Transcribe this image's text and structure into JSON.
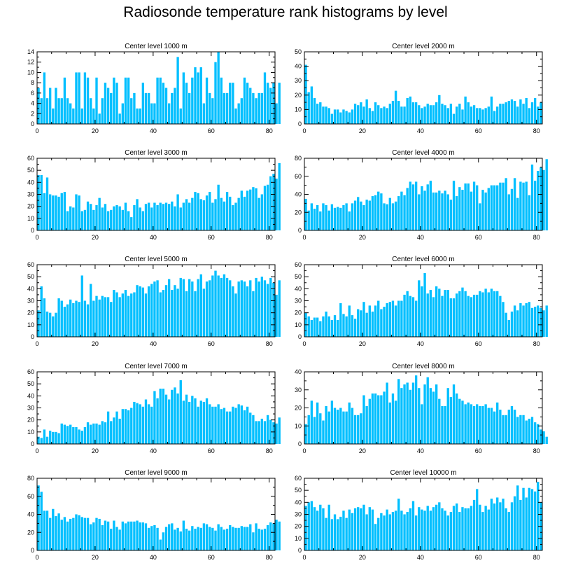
{
  "title": "Radiosonde temperature rank histograms by level",
  "colors": {
    "bar": "#00bfff",
    "axis": "#000000"
  },
  "chart_data": [
    {
      "type": "bar",
      "title": "Center level 1000 m",
      "xlim": [
        0,
        82
      ],
      "xticks": [
        0,
        20,
        40,
        60,
        80
      ],
      "ylim": [
        0,
        14
      ],
      "yticks": [
        0,
        2,
        4,
        6,
        8,
        10,
        12,
        14
      ],
      "values": [
        7,
        5,
        10,
        5,
        7,
        3,
        7,
        5,
        5,
        9,
        5,
        4,
        3,
        10,
        10,
        3,
        10,
        9,
        5,
        3,
        9,
        2,
        5,
        8,
        7,
        6,
        9,
        8,
        2,
        4,
        9,
        9,
        5,
        6,
        3,
        3,
        8,
        6,
        6,
        4,
        4,
        9,
        9,
        8,
        7,
        4,
        6,
        7,
        13,
        3,
        10,
        8,
        6,
        9,
        11,
        10,
        11,
        4,
        9,
        6,
        5,
        12,
        14,
        9,
        6,
        6,
        8,
        8,
        3,
        4,
        5,
        9,
        8,
        7,
        6,
        5,
        6,
        6,
        10,
        8,
        7,
        8,
        4,
        8
      ]
    },
    {
      "type": "bar",
      "title": "Center level 2000 m",
      "xlim": [
        0,
        82
      ],
      "xticks": [
        0,
        20,
        40,
        60,
        80
      ],
      "ylim": [
        0,
        50
      ],
      "yticks": [
        0,
        10,
        20,
        30,
        40,
        50
      ],
      "values": [
        41,
        22,
        26,
        18,
        14,
        15,
        12,
        12,
        11,
        7,
        10,
        10,
        8,
        10,
        9,
        8,
        10,
        14,
        13,
        15,
        12,
        17,
        11,
        9,
        15,
        13,
        11,
        12,
        11,
        14,
        16,
        23,
        16,
        12,
        12,
        18,
        19,
        15,
        15,
        13,
        11,
        12,
        14,
        13,
        13,
        15,
        20,
        14,
        13,
        11,
        14,
        7,
        12,
        14,
        10,
        19,
        15,
        12,
        13,
        11,
        11,
        10,
        11,
        12,
        19,
        9,
        12,
        14,
        14,
        15,
        16,
        17,
        16,
        12,
        17,
        14,
        18,
        11,
        15,
        18,
        12,
        15
      ]
    },
    {
      "type": "bar",
      "title": "Center level 3000 m",
      "xlim": [
        0,
        82
      ],
      "xticks": [
        0,
        20,
        40,
        60,
        80
      ],
      "ylim": [
        0,
        60
      ],
      "yticks": [
        0,
        10,
        20,
        30,
        40,
        50,
        60
      ],
      "values": [
        46,
        46,
        31,
        44,
        30,
        29,
        29,
        28,
        31,
        32,
        16,
        20,
        19,
        30,
        29,
        16,
        17,
        24,
        22,
        17,
        21,
        27,
        19,
        22,
        16,
        17,
        20,
        21,
        20,
        17,
        23,
        16,
        11,
        21,
        26,
        19,
        16,
        22,
        23,
        19,
        23,
        21,
        23,
        22,
        23,
        22,
        24,
        20,
        30,
        19,
        23,
        26,
        23,
        27,
        32,
        31,
        26,
        25,
        29,
        32,
        23,
        26,
        38,
        27,
        24,
        32,
        28,
        21,
        23,
        27,
        33,
        28,
        33,
        34,
        36,
        35,
        27,
        30,
        37,
        38,
        45,
        47,
        43,
        56
      ]
    },
    {
      "type": "bar",
      "title": "Center level 4000 m",
      "xlim": [
        0,
        82
      ],
      "xticks": [
        0,
        20,
        40,
        60,
        80
      ],
      "ylim": [
        0,
        80
      ],
      "yticks": [
        0,
        20,
        40,
        60,
        80
      ],
      "values": [
        35,
        22,
        30,
        24,
        28,
        21,
        30,
        28,
        22,
        29,
        25,
        26,
        25,
        28,
        30,
        21,
        30,
        33,
        37,
        32,
        28,
        34,
        33,
        38,
        39,
        43,
        41,
        30,
        29,
        36,
        30,
        32,
        38,
        43,
        39,
        47,
        54,
        51,
        54,
        40,
        49,
        44,
        51,
        55,
        42,
        42,
        44,
        41,
        44,
        40,
        34,
        55,
        38,
        48,
        45,
        52,
        52,
        43,
        54,
        50,
        30,
        45,
        42,
        47,
        50,
        50,
        50,
        53,
        53,
        58,
        40,
        46,
        58,
        36,
        54,
        53,
        54,
        39,
        73,
        55,
        66,
        70,
        67,
        79
      ]
    },
    {
      "type": "bar",
      "title": "Center level 5000 m",
      "xlim": [
        0,
        82
      ],
      "xticks": [
        0,
        20,
        40,
        60,
        80
      ],
      "ylim": [
        0,
        60
      ],
      "yticks": [
        0,
        10,
        20,
        30,
        40,
        50,
        60
      ],
      "values": [
        22,
        42,
        32,
        21,
        20,
        17,
        20,
        32,
        30,
        25,
        27,
        31,
        28,
        30,
        29,
        51,
        30,
        27,
        44,
        30,
        34,
        31,
        34,
        33,
        33,
        29,
        39,
        37,
        33,
        36,
        39,
        34,
        36,
        37,
        43,
        42,
        41,
        36,
        42,
        44,
        46,
        47,
        37,
        39,
        43,
        48,
        39,
        43,
        40,
        49,
        48,
        38,
        48,
        46,
        38,
        48,
        52,
        40,
        46,
        47,
        51,
        55,
        51,
        49,
        52,
        49,
        47,
        42,
        36,
        46,
        47,
        46,
        42,
        47,
        38,
        49,
        46,
        50,
        47,
        44,
        49,
        45,
        35,
        47
      ]
    },
    {
      "type": "bar",
      "title": "Center level 6000 m",
      "xlim": [
        0,
        82
      ],
      "xticks": [
        0,
        20,
        40,
        60,
        80
      ],
      "ylim": [
        0,
        60
      ],
      "yticks": [
        0,
        10,
        20,
        30,
        40,
        50,
        60
      ],
      "values": [
        20,
        17,
        14,
        16,
        16,
        13,
        17,
        21,
        17,
        14,
        18,
        14,
        28,
        19,
        17,
        26,
        18,
        15,
        23,
        22,
        29,
        20,
        26,
        21,
        26,
        30,
        23,
        25,
        28,
        29,
        30,
        26,
        30,
        30,
        35,
        38,
        34,
        33,
        30,
        47,
        42,
        53,
        36,
        39,
        33,
        42,
        40,
        34,
        39,
        39,
        32,
        32,
        36,
        38,
        41,
        38,
        34,
        33,
        35,
        35,
        38,
        37,
        40,
        37,
        40,
        38,
        38,
        34,
        29,
        20,
        14,
        21,
        26,
        22,
        28,
        26,
        28,
        29,
        24,
        25,
        26,
        24,
        22,
        26
      ]
    },
    {
      "type": "bar",
      "title": "Center level 7000 m",
      "xlim": [
        0,
        82
      ],
      "xticks": [
        0,
        20,
        40,
        60,
        80
      ],
      "ylim": [
        0,
        60
      ],
      "yticks": [
        0,
        10,
        20,
        30,
        40,
        50,
        60
      ],
      "values": [
        6,
        5,
        12,
        6,
        11,
        10,
        10,
        9,
        17,
        16,
        15,
        16,
        14,
        14,
        12,
        11,
        14,
        18,
        16,
        17,
        17,
        16,
        19,
        18,
        27,
        19,
        22,
        27,
        21,
        29,
        29,
        28,
        30,
        35,
        34,
        33,
        31,
        37,
        33,
        31,
        44,
        38,
        46,
        46,
        41,
        37,
        45,
        47,
        42,
        53,
        36,
        41,
        35,
        40,
        38,
        31,
        36,
        35,
        38,
        33,
        31,
        31,
        33,
        29,
        30,
        27,
        27,
        31,
        30,
        33,
        32,
        28,
        31,
        26,
        24,
        19,
        19,
        21,
        19,
        24,
        20,
        18,
        17,
        22
      ]
    },
    {
      "type": "bar",
      "title": "Center level 8000 m",
      "xlim": [
        0,
        82
      ],
      "xticks": [
        0,
        20,
        40,
        60,
        80
      ],
      "ylim": [
        0,
        40
      ],
      "yticks": [
        0,
        10,
        20,
        30,
        40
      ],
      "values": [
        11,
        16,
        24,
        15,
        23,
        17,
        13,
        21,
        18,
        24,
        20,
        19,
        20,
        18,
        18,
        23,
        20,
        16,
        16,
        17,
        27,
        21,
        25,
        28,
        28,
        27,
        27,
        29,
        34,
        23,
        28,
        24,
        36,
        31,
        33,
        34,
        30,
        34,
        38,
        31,
        22,
        33,
        37,
        31,
        29,
        33,
        25,
        21,
        21,
        31,
        26,
        33,
        28,
        25,
        24,
        22,
        23,
        22,
        21,
        22,
        21,
        21,
        22,
        20,
        20,
        18,
        23,
        19,
        16,
        16,
        19,
        21,
        19,
        15,
        16,
        16,
        13,
        14,
        15,
        12,
        11,
        8,
        7,
        4
      ]
    },
    {
      "type": "bar",
      "title": "Center level 9000 m",
      "xlim": [
        0,
        82
      ],
      "xticks": [
        0,
        20,
        40,
        60,
        80
      ],
      "ylim": [
        0,
        80
      ],
      "yticks": [
        0,
        20,
        40,
        60,
        80
      ],
      "values": [
        72,
        65,
        44,
        44,
        36,
        46,
        38,
        41,
        34,
        37,
        32,
        35,
        36,
        40,
        39,
        37,
        36,
        36,
        29,
        31,
        36,
        35,
        28,
        33,
        32,
        24,
        33,
        26,
        23,
        32,
        30,
        32,
        32,
        32,
        33,
        31,
        31,
        30,
        25,
        27,
        28,
        25,
        12,
        20,
        26,
        29,
        30,
        23,
        25,
        21,
        33,
        24,
        22,
        27,
        24,
        26,
        25,
        30,
        29,
        26,
        25,
        22,
        29,
        26,
        23,
        24,
        28,
        26,
        25,
        25,
        27,
        26,
        26,
        29,
        20,
        30,
        24,
        23,
        24,
        28,
        31,
        30,
        34,
        32
      ]
    },
    {
      "type": "bar",
      "title": "Center level 10000 m",
      "xlim": [
        0,
        82
      ],
      "xticks": [
        0,
        20,
        40,
        60,
        80
      ],
      "ylim": [
        0,
        60
      ],
      "yticks": [
        0,
        10,
        20,
        30,
        40,
        50,
        60
      ],
      "values": [
        37,
        40,
        41,
        36,
        33,
        38,
        35,
        27,
        38,
        26,
        30,
        26,
        28,
        33,
        27,
        34,
        31,
        35,
        36,
        35,
        38,
        30,
        36,
        34,
        22,
        27,
        31,
        29,
        34,
        30,
        32,
        33,
        43,
        33,
        30,
        32,
        35,
        41,
        29,
        36,
        34,
        33,
        37,
        33,
        36,
        38,
        40,
        35,
        33,
        29,
        32,
        37,
        39,
        32,
        36,
        35,
        35,
        37,
        42,
        51,
        38,
        32,
        37,
        34,
        43,
        39,
        44,
        40,
        43,
        35,
        32,
        40,
        45,
        54,
        42,
        52,
        44,
        52,
        51,
        49,
        57,
        40
      ]
    }
  ]
}
